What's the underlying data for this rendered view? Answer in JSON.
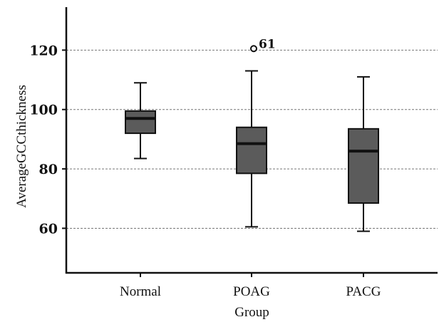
{
  "chart_data": {
    "type": "boxplot",
    "title": "",
    "xlabel": "Group",
    "ylabel": "AverageGCCthickness",
    "ylim": [
      45,
      134
    ],
    "yticks": [
      60,
      80,
      100,
      120
    ],
    "grid": "horizontal dashed",
    "legend": "none",
    "box_color": "#5b5b5b",
    "categories": [
      "Normal",
      "POAG",
      "PACG"
    ],
    "boxes": [
      {
        "category": "Normal",
        "whisker_low": 83.5,
        "q1": 92,
        "median": 97,
        "q3": 99.5,
        "whisker_high": 109,
        "outliers": []
      },
      {
        "category": "POAG",
        "whisker_low": 60.5,
        "q1": 78.5,
        "median": 88.5,
        "q3": 94,
        "whisker_high": 113,
        "outliers": [
          {
            "value": 120.5,
            "label": "61"
          }
        ]
      },
      {
        "category": "PACG",
        "whisker_low": 59,
        "q1": 68.5,
        "median": 86,
        "q3": 93.5,
        "whisker_high": 111,
        "outliers": []
      }
    ]
  }
}
